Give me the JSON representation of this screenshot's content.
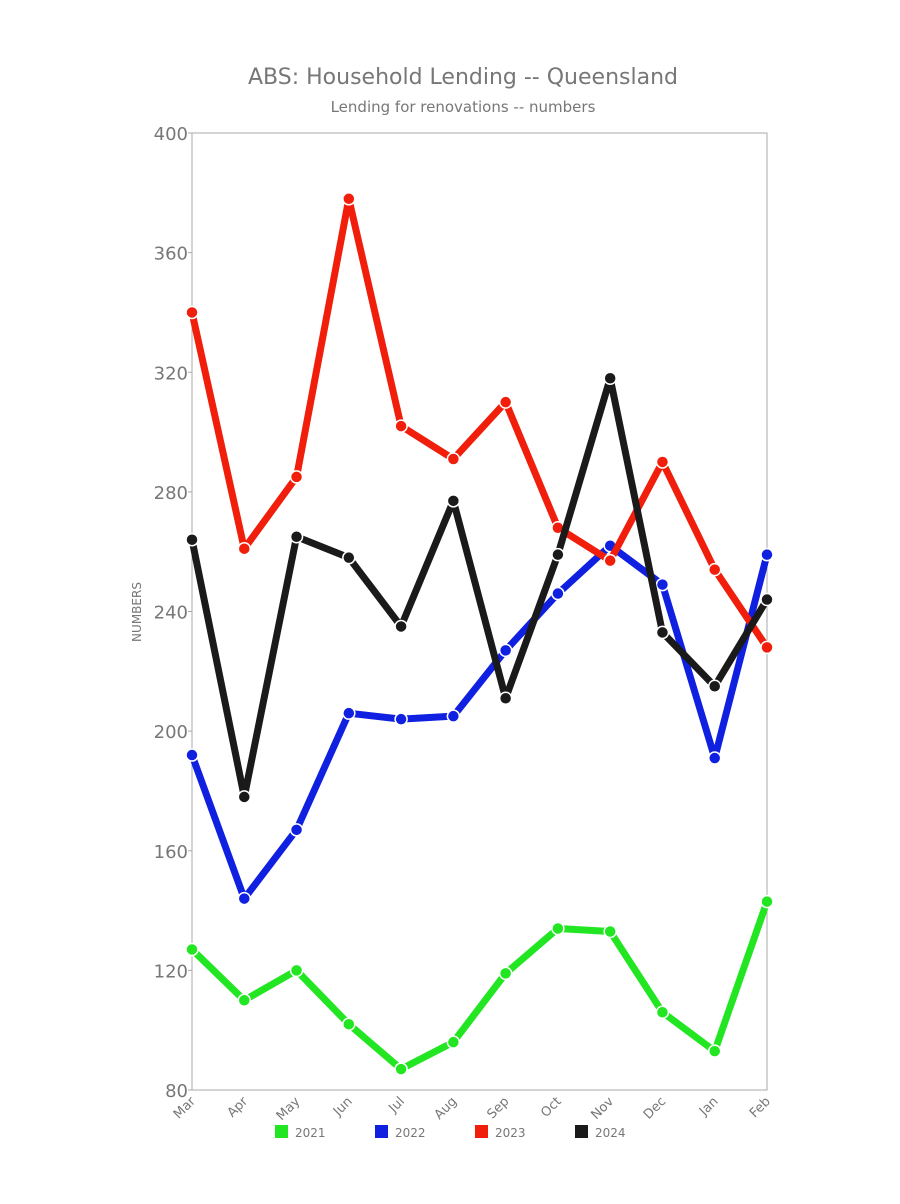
{
  "chart_data": {
    "type": "line",
    "title": "ABS: Household Lending -- Queensland",
    "subtitle": "Lending for renovations -- numbers",
    "y_label": "NUMBERS",
    "categories": [
      "Mar",
      "Apr",
      "May",
      "Jun",
      "Jul",
      "Aug",
      "Sep",
      "Oct",
      "Nov",
      "Dec",
      "Jan",
      "Feb"
    ],
    "series": [
      {
        "name": "2021",
        "color": "#22e622",
        "values": [
          127,
          110,
          120,
          102,
          87,
          96,
          119,
          134,
          133,
          106,
          93,
          143
        ]
      },
      {
        "name": "2022",
        "color": "#1020e0",
        "values": [
          192,
          144,
          167,
          206,
          204,
          205,
          227,
          246,
          262,
          249,
          191,
          259
        ]
      },
      {
        "name": "2023",
        "color": "#f01e0a",
        "values": [
          340,
          261,
          285,
          378,
          302,
          291,
          310,
          268,
          257,
          290,
          254,
          228
        ]
      },
      {
        "name": "2024",
        "color": "#1a1a1a",
        "values": [
          264,
          178,
          265,
          258,
          235,
          277,
          211,
          259,
          318,
          233,
          215,
          244
        ]
      }
    ],
    "ylim": [
      80,
      400
    ],
    "yticks": [
      80,
      120,
      160,
      200,
      240,
      280,
      320,
      360,
      400
    ],
    "grid": false,
    "legend": "bottom"
  }
}
